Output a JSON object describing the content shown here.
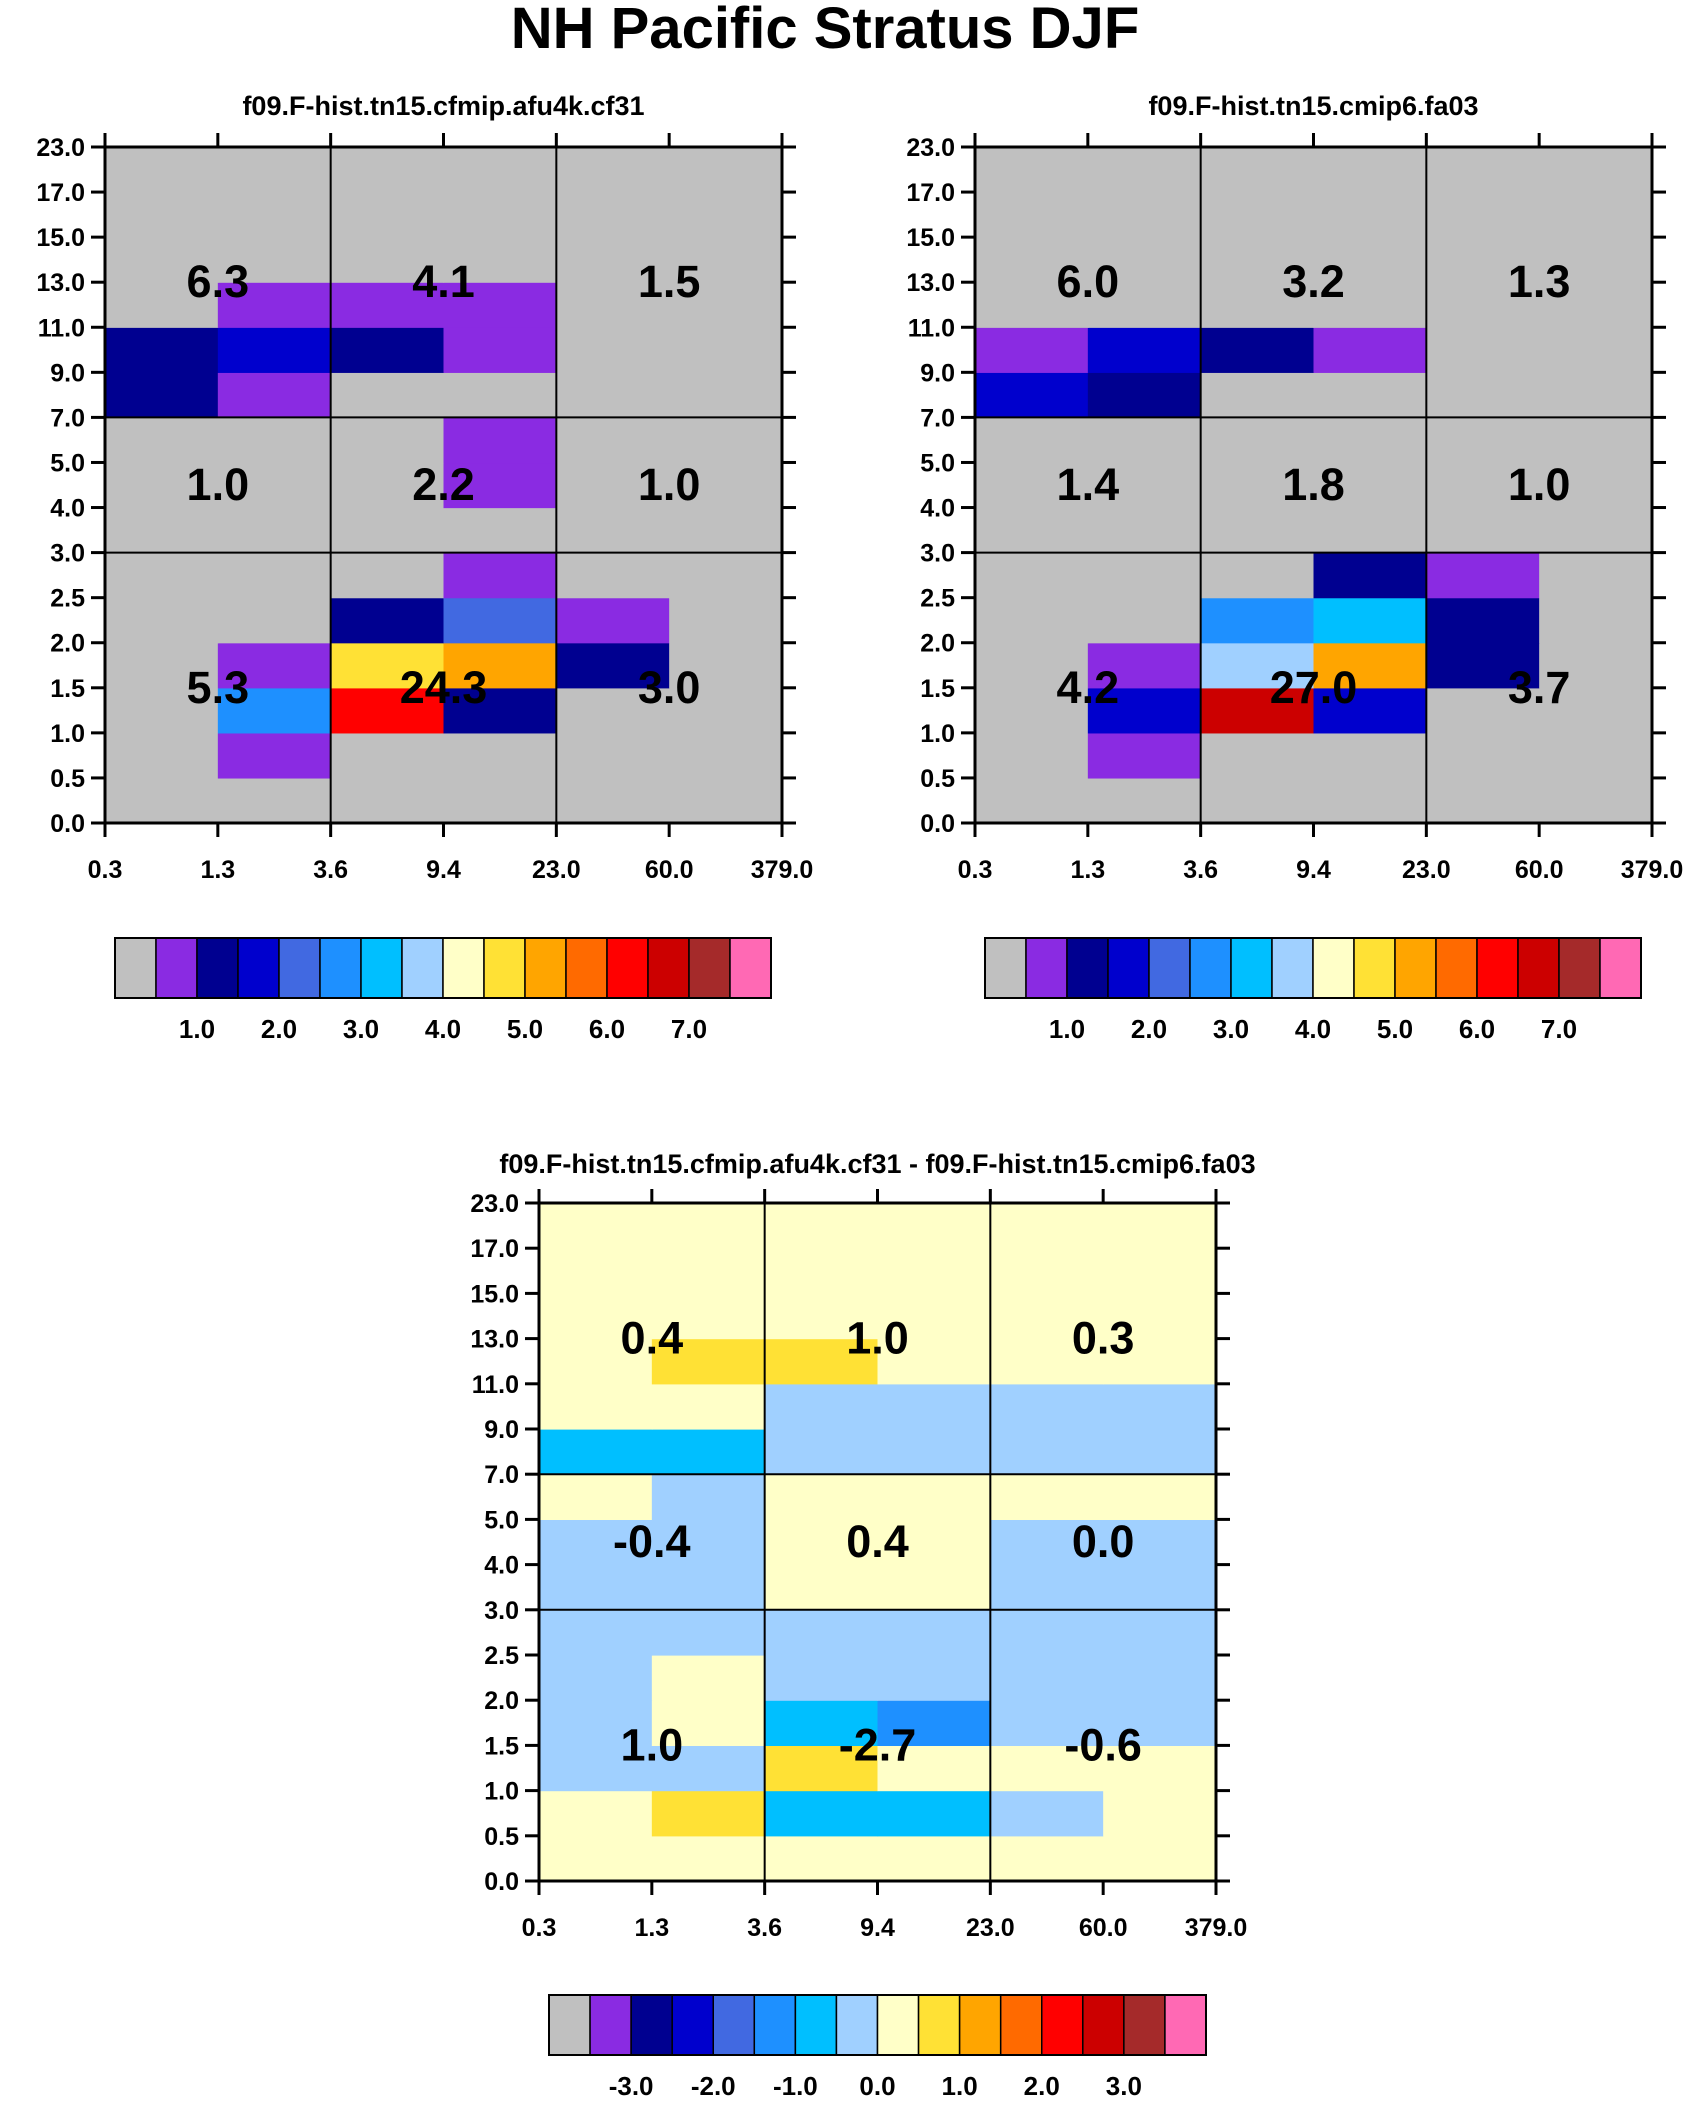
{
  "chart_data": {
    "title": "NH Pacific Stratus DJF",
    "x_tick_labels": [
      "0.3",
      "1.3",
      "3.6",
      "9.4",
      "23.0",
      "60.0",
      "379.0"
    ],
    "y_tick_labels": [
      "0.0",
      "0.5",
      "1.0",
      "1.5",
      "2.0",
      "2.5",
      "3.0",
      "4.0",
      "5.0",
      "7.0",
      "9.0",
      "11.0",
      "13.0",
      "15.0",
      "17.0",
      "23.0"
    ],
    "main_palette": [
      "#c0c0c0",
      "#8a2be2",
      "#000090",
      "#0000cd",
      "#4169e1",
      "#1e90ff",
      "#00bfff",
      "#a0d0ff",
      "#ffffc8",
      "#ffe135",
      "#ffa500",
      "#ff6a00",
      "#ff0000",
      "#cc0000",
      "#a52a2a",
      "#ff69b4"
    ],
    "diff_palette": [
      "#c0c0c0",
      "#8a2be2",
      "#000090",
      "#0000cd",
      "#4169e1",
      "#1e90ff",
      "#00bfff",
      "#a0d0ff",
      "#ffffc8",
      "#ffe135",
      "#ffa500",
      "#ff6a00",
      "#ff0000",
      "#cc0000",
      "#a52a2a",
      "#ff69b4"
    ],
    "panels": [
      {
        "type": "heatmap",
        "title": "f09.F-hist.tn15.cfmip.afu4k.cf31",
        "colorbar_labels": [
          "1.0",
          "2.0",
          "3.0",
          "4.0",
          "5.0",
          "6.0",
          "7.0"
        ],
        "values": [
          [
            0,
            0,
            0,
            0,
            0,
            0
          ],
          [
            0,
            1,
            0,
            0,
            0,
            0
          ],
          [
            0,
            5,
            12,
            2,
            0,
            0
          ],
          [
            0,
            1,
            9,
            10,
            2,
            0
          ],
          [
            0,
            0,
            2,
            4,
            1,
            0
          ],
          [
            0,
            0,
            0,
            1,
            0,
            0
          ],
          [
            0,
            0,
            0,
            0,
            0,
            0
          ],
          [
            0,
            0,
            0,
            1,
            0,
            0
          ],
          [
            0,
            0,
            0,
            1,
            0,
            0
          ],
          [
            2,
            1,
            0,
            0,
            0,
            0
          ],
          [
            2,
            3,
            2,
            1,
            0,
            0
          ],
          [
            0,
            1,
            1,
            1,
            0,
            0
          ],
          [
            0,
            0,
            0,
            0,
            0,
            0
          ],
          [
            0,
            0,
            0,
            0,
            0,
            0
          ],
          [
            0,
            0,
            0,
            0,
            0,
            0
          ]
        ],
        "region_labels": [
          [
            "5.3",
            "24.3",
            "3.0"
          ],
          [
            "1.0",
            "2.2",
            "1.0"
          ],
          [
            "6.3",
            "4.1",
            "1.5"
          ]
        ]
      },
      {
        "type": "heatmap",
        "title": "f09.F-hist.tn15.cmip6.fa03",
        "colorbar_labels": [
          "1.0",
          "2.0",
          "3.0",
          "4.0",
          "5.0",
          "6.0",
          "7.0"
        ],
        "values": [
          [
            0,
            0,
            0,
            0,
            0,
            0
          ],
          [
            0,
            1,
            0,
            0,
            0,
            0
          ],
          [
            0,
            3,
            13,
            3,
            0,
            0
          ],
          [
            0,
            1,
            7,
            10,
            2,
            0
          ],
          [
            0,
            0,
            5,
            6,
            2,
            0
          ],
          [
            0,
            0,
            0,
            2,
            1,
            0
          ],
          [
            0,
            0,
            0,
            0,
            0,
            0
          ],
          [
            0,
            0,
            0,
            0,
            0,
            0
          ],
          [
            0,
            0,
            0,
            0,
            0,
            0
          ],
          [
            3,
            2,
            0,
            0,
            0,
            0
          ],
          [
            1,
            3,
            2,
            1,
            0,
            0
          ],
          [
            0,
            0,
            0,
            0,
            0,
            0
          ],
          [
            0,
            0,
            0,
            0,
            0,
            0
          ],
          [
            0,
            0,
            0,
            0,
            0,
            0
          ],
          [
            0,
            0,
            0,
            0,
            0,
            0
          ]
        ],
        "region_labels": [
          [
            "4.2",
            "27.0",
            "3.7"
          ],
          [
            "1.4",
            "1.8",
            "1.0"
          ],
          [
            "6.0",
            "3.2",
            "1.3"
          ]
        ]
      },
      {
        "type": "heatmap",
        "title": "f09.F-hist.tn15.cfmip.afu4k.cf31 - f09.F-hist.tn15.cmip6.fa03",
        "colorbar_labels": [
          "-3.0",
          "-2.0",
          "-1.0",
          "0.0",
          "1.0",
          "2.0",
          "3.0"
        ],
        "values": [
          [
            8,
            8,
            8,
            8,
            8,
            8
          ],
          [
            8,
            9,
            6,
            6,
            7,
            8
          ],
          [
            7,
            7,
            9,
            8,
            8,
            8
          ],
          [
            7,
            8,
            6,
            5,
            7,
            7
          ],
          [
            7,
            8,
            7,
            7,
            7,
            7
          ],
          [
            7,
            7,
            7,
            7,
            7,
            7
          ],
          [
            7,
            7,
            8,
            8,
            7,
            7
          ],
          [
            7,
            7,
            8,
            8,
            7,
            7
          ],
          [
            8,
            7,
            8,
            8,
            8,
            8
          ],
          [
            6,
            6,
            7,
            7,
            7,
            7
          ],
          [
            8,
            8,
            7,
            7,
            7,
            7
          ],
          [
            8,
            9,
            9,
            8,
            8,
            8
          ],
          [
            8,
            8,
            8,
            8,
            8,
            8
          ],
          [
            8,
            8,
            8,
            8,
            8,
            8
          ],
          [
            8,
            8,
            8,
            8,
            8,
            8
          ]
        ],
        "region_labels": [
          [
            "1.0",
            "-2.7",
            "-0.6"
          ],
          [
            "-0.4",
            "0.4",
            "0.0"
          ],
          [
            "0.4",
            "1.0",
            "0.3"
          ]
        ]
      }
    ]
  }
}
